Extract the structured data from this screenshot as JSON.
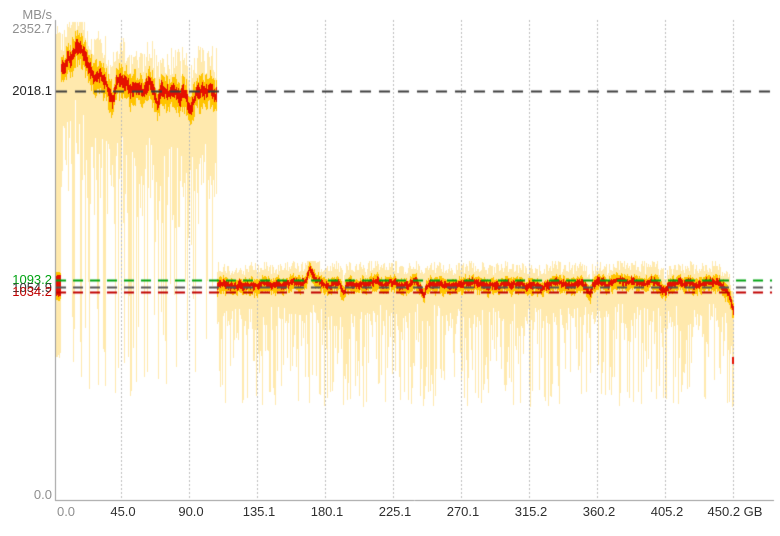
{
  "chart_data": {
    "type": "area",
    "title": "",
    "xlabel": "GB",
    "ylabel": "MB/s",
    "axis_ranges": {
      "x_gb": [
        0,
        450.2
      ],
      "y_mbs": [
        0,
        2352.7
      ]
    },
    "grid": {
      "vertical": "dotted",
      "horizontal": "none"
    },
    "y_axis": {
      "unit": "MB/s",
      "ticks": [
        {
          "value": 2352.7,
          "label": "2352.7",
          "role": "gray"
        },
        {
          "value": 2018.1,
          "label": "2018.1",
          "role": "dark"
        },
        {
          "value": 1093.2,
          "label": "1093.2",
          "role": "green"
        },
        {
          "value": 1054.9,
          "label": "1054.9",
          "role": "mid"
        },
        {
          "value": 1034.2,
          "label": "1034.2",
          "role": "red"
        },
        {
          "value": 0.0,
          "label": "0.0",
          "role": "gray"
        }
      ]
    },
    "x_axis": {
      "ticks": [
        {
          "gb": 0,
          "label": "0.0",
          "muted": true
        },
        {
          "gb": 45,
          "label": "45.0",
          "muted": false
        },
        {
          "gb": 90,
          "label": "90.0",
          "muted": false
        },
        {
          "gb": 135.1,
          "label": "135.1",
          "muted": false
        },
        {
          "gb": 180.1,
          "label": "180.1",
          "muted": false
        },
        {
          "gb": 225.1,
          "label": "225.1",
          "muted": false
        },
        {
          "gb": 270.1,
          "label": "270.1",
          "muted": false
        },
        {
          "gb": 315.2,
          "label": "315.2",
          "muted": false
        },
        {
          "gb": 360.2,
          "label": "360.2",
          "muted": false
        },
        {
          "gb": 405.2,
          "label": "405.2",
          "muted": false
        },
        {
          "gb": 450.2,
          "label": "450.2 GB",
          "muted": false
        }
      ]
    },
    "ref_lines": [
      {
        "value": 2018.1,
        "color": "#3d3d3d",
        "dash": [
          11,
          8
        ]
      },
      {
        "value": 1093.2,
        "color": "#00a312",
        "dash": [
          10,
          7
        ]
      },
      {
        "value": 1054.9,
        "color": "#565656",
        "dash": [
          10,
          7
        ]
      },
      {
        "value": 1034.2,
        "color": "#c00000",
        "dash": [
          10,
          7
        ]
      }
    ],
    "series": {
      "segment_a": {
        "range_gb": [
          2.3,
          107.9
        ],
        "avg_anchors": [
          [
            2.3,
            2090
          ],
          [
            4,
            2120
          ],
          [
            6,
            2145
          ],
          [
            8,
            2130
          ],
          [
            10,
            2175
          ],
          [
            12,
            2165
          ],
          [
            14,
            2205
          ],
          [
            16,
            2235
          ],
          [
            17.5,
            2252
          ],
          [
            19,
            2225
          ],
          [
            21,
            2190
          ],
          [
            23,
            2130
          ],
          [
            25,
            2105
          ],
          [
            27,
            2085
          ],
          [
            29,
            2098
          ],
          [
            31,
            2108
          ],
          [
            33,
            2085
          ],
          [
            35,
            2070
          ],
          [
            37,
            2030
          ],
          [
            39,
            1978
          ],
          [
            40.5,
            2035
          ],
          [
            42,
            2085
          ],
          [
            44,
            2102
          ],
          [
            46,
            2098
          ],
          [
            48,
            2075
          ],
          [
            50,
            2058
          ],
          [
            52,
            2048
          ],
          [
            54,
            2060
          ],
          [
            56,
            2052
          ],
          [
            58,
            2030
          ],
          [
            60,
            2018
          ],
          [
            62,
            2042
          ],
          [
            64,
            2052
          ],
          [
            66,
            2005
          ],
          [
            68,
            1960
          ],
          [
            69,
            1938
          ],
          [
            70.5,
            1985
          ],
          [
            72,
            2015
          ],
          [
            74,
            2028
          ],
          [
            76,
            2012
          ],
          [
            78,
            2018
          ],
          [
            80,
            2035
          ],
          [
            82,
            2022
          ],
          [
            84,
            2002
          ],
          [
            86,
            2018
          ],
          [
            88,
            1995
          ],
          [
            90,
            1930
          ],
          [
            91,
            1924
          ],
          [
            92.5,
            1965
          ],
          [
            94,
            2000
          ],
          [
            96,
            2025
          ],
          [
            98,
            2035
          ],
          [
            100,
            2028
          ],
          [
            102,
            2015
          ],
          [
            104,
            2032
          ],
          [
            106,
            2028
          ],
          [
            107.8,
            2022
          ]
        ]
      },
      "segment_b": {
        "range_gb": [
          107.9,
          450.2
        ],
        "avg_anchors": [
          [
            108.3,
            1078
          ],
          [
            112,
            1070
          ],
          [
            116,
            1076
          ],
          [
            120,
            1071
          ],
          [
            124,
            1077
          ],
          [
            128,
            1072
          ],
          [
            132,
            1076
          ],
          [
            136,
            1070
          ],
          [
            140,
            1076
          ],
          [
            144,
            1072
          ],
          [
            148,
            1076
          ],
          [
            152,
            1070
          ],
          [
            156,
            1075
          ],
          [
            160,
            1072
          ],
          [
            164,
            1082
          ],
          [
            167,
            1105
          ],
          [
            169.5,
            1148
          ],
          [
            171,
            1128
          ],
          [
            173,
            1095
          ],
          [
            176,
            1082
          ],
          [
            180,
            1076
          ],
          [
            184,
            1072
          ],
          [
            188,
            1076
          ],
          [
            191,
            1040
          ],
          [
            192.5,
            1018
          ],
          [
            194,
            1060
          ],
          [
            196,
            1074
          ],
          [
            200,
            1071
          ],
          [
            205,
            1076
          ],
          [
            210,
            1072
          ],
          [
            215,
            1076
          ],
          [
            220,
            1071
          ],
          [
            225,
            1076
          ],
          [
            230,
            1072
          ],
          [
            235,
            1076
          ],
          [
            240,
            1071
          ],
          [
            244,
            1045
          ],
          [
            245.5,
            1028
          ],
          [
            247,
            1062
          ],
          [
            250,
            1074
          ],
          [
            255,
            1071
          ],
          [
            260,
            1076
          ],
          [
            265,
            1072
          ],
          [
            270,
            1076
          ],
          [
            275,
            1071
          ],
          [
            280,
            1076
          ],
          [
            285,
            1072
          ],
          [
            290,
            1076
          ],
          [
            294,
            1048
          ],
          [
            295.5,
            1030
          ],
          [
            297,
            1065
          ],
          [
            300,
            1074
          ],
          [
            305,
            1071
          ],
          [
            310,
            1076
          ],
          [
            315,
            1072
          ],
          [
            320,
            1076
          ],
          [
            325,
            1071
          ],
          [
            330,
            1076
          ],
          [
            335,
            1072
          ],
          [
            340,
            1076
          ],
          [
            345,
            1071
          ],
          [
            350,
            1076
          ],
          [
            354,
            1048
          ],
          [
            355.5,
            1032
          ],
          [
            357,
            1064
          ],
          [
            360,
            1074
          ],
          [
            365,
            1071
          ],
          [
            370,
            1076
          ],
          [
            375,
            1072
          ],
          [
            380,
            1076
          ],
          [
            385,
            1071
          ],
          [
            390,
            1076
          ],
          [
            395,
            1072
          ],
          [
            400,
            1076
          ],
          [
            404,
            1050
          ],
          [
            405.5,
            1034
          ],
          [
            407,
            1062
          ],
          [
            410,
            1074
          ],
          [
            415,
            1071
          ],
          [
            420,
            1076
          ],
          [
            425,
            1072
          ],
          [
            430,
            1076
          ],
          [
            434,
            1071
          ],
          [
            438,
            1076
          ],
          [
            441,
            1068
          ],
          [
            444,
            1058
          ],
          [
            446,
            1040
          ],
          [
            448,
            1005
          ],
          [
            449.5,
            962
          ],
          [
            450.2,
            950
          ]
        ]
      },
      "envelope_a": {
        "top_min": 80,
        "top_spread": 150,
        "cap": 2352.7,
        "typ_min": 250,
        "typ_spread": 450,
        "deep_prob": 0.3,
        "deep_lo": 520,
        "deep_hi": 1120,
        "o_min": 40,
        "o_spread": 50,
        "r_min": 15,
        "r_spread": 25,
        "jitter": 34
      },
      "envelope_b": {
        "top_min": 50,
        "top_spread": 60,
        "cap": 1185,
        "typ_min": 100,
        "typ_spread": 120,
        "deep_prob": 0.55,
        "deep_lo": 470,
        "deep_hi": 850,
        "o_min": 22,
        "o_spread": 18,
        "r_min": 8,
        "r_spread": 14,
        "jitter": 22
      },
      "intro_burst": {
        "pale": [
          690,
          2340
        ],
        "orange": [
          985,
          1140
        ],
        "red": [
          1008,
          1120
        ]
      },
      "end_marker": {
        "gb": 449.5,
        "mbs": 715
      }
    },
    "render": {
      "seed": 11
    }
  },
  "colors": {
    "pale_band": "#ffe9ad",
    "orange_band": "#ffc400",
    "red_line": "#e51000",
    "grid": "#bcbcbc",
    "axis": "#9a9a9a",
    "label_gray": "#8f8f8f",
    "label_dark": "#262626",
    "label_green": "#00a312",
    "label_mid": "#3a3a3a",
    "label_red": "#c00000",
    "x_label": "#2f2f2f"
  }
}
